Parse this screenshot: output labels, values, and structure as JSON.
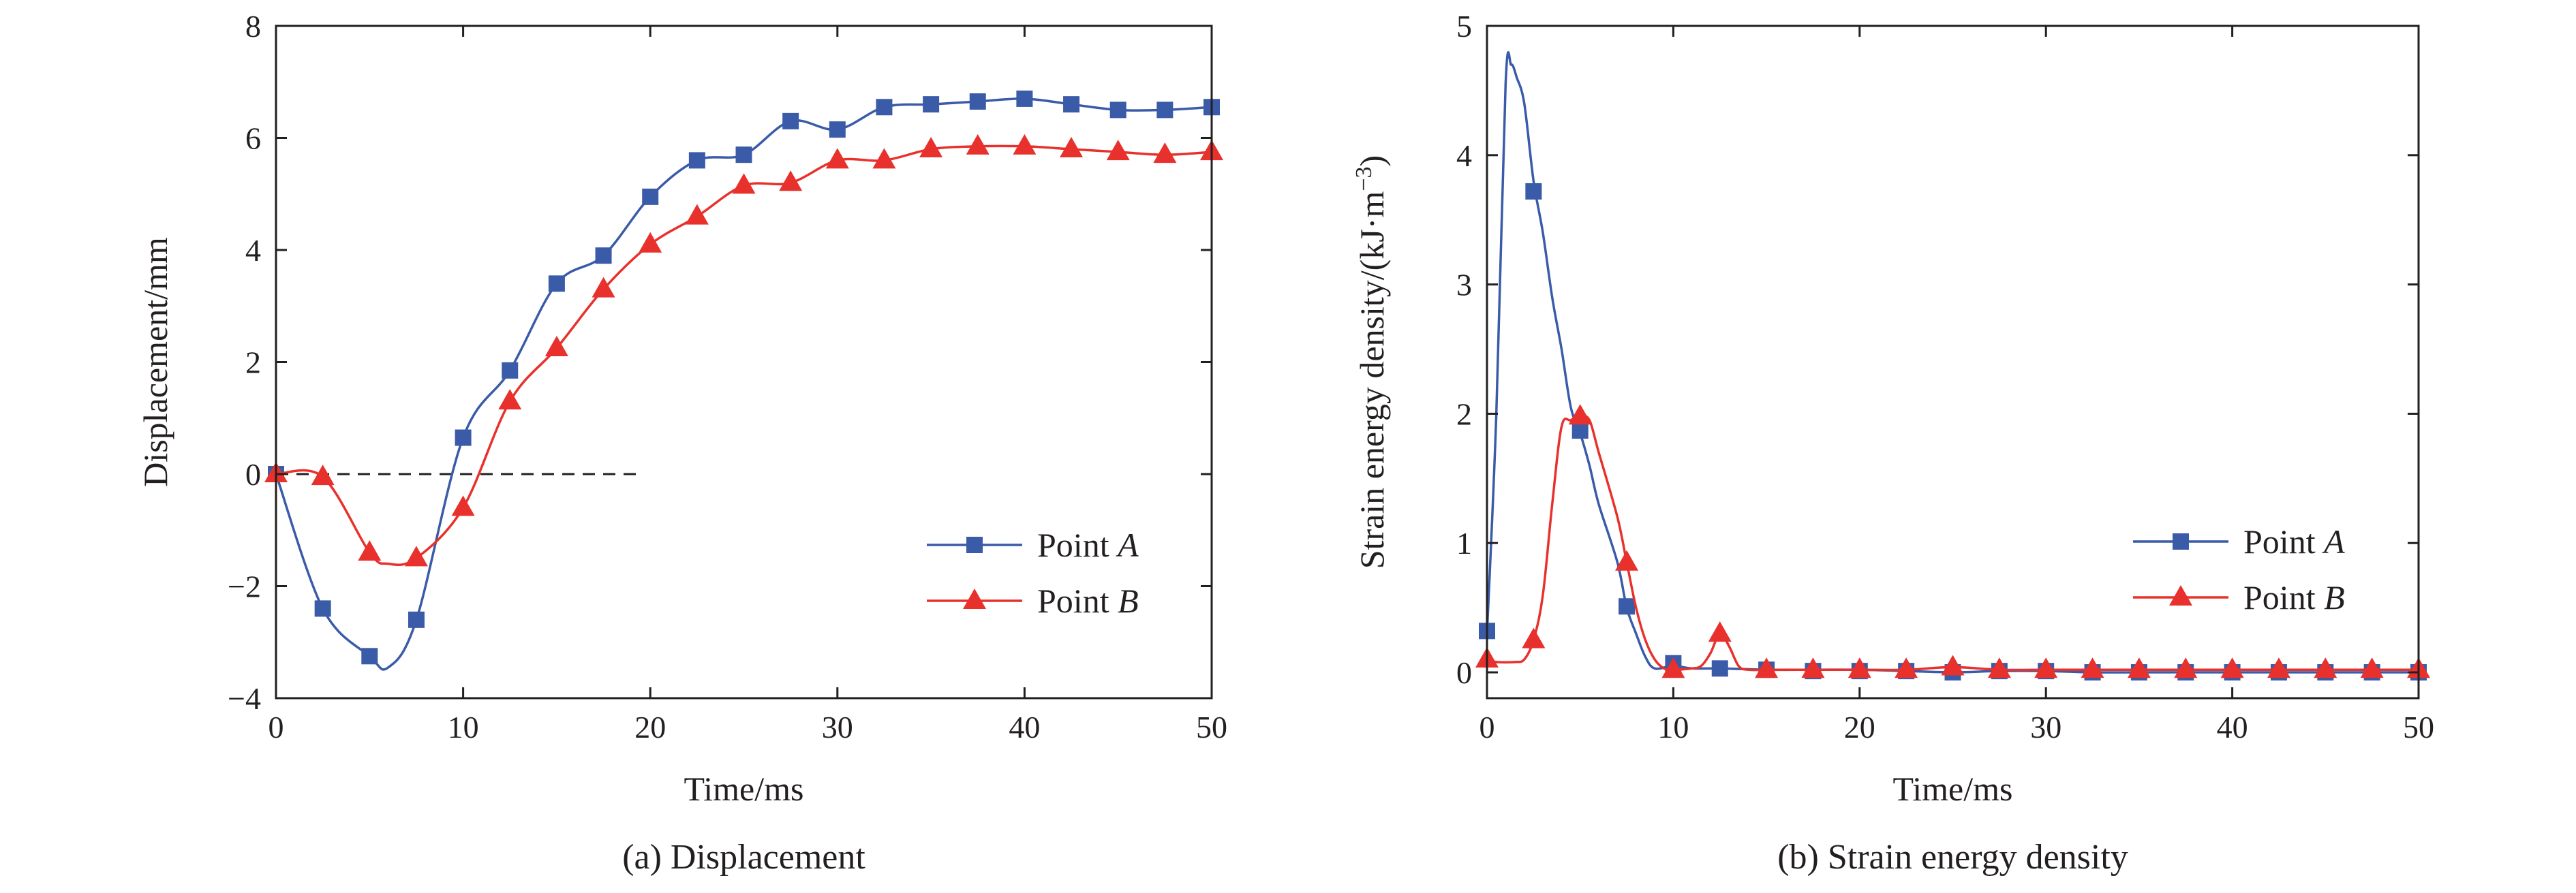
{
  "chart_data": [
    {
      "id": "a",
      "type": "line",
      "caption": "(a) Displacement",
      "xlabel": "Time/ms",
      "ylabel": "Displacement/mm",
      "xlim": [
        0,
        50
      ],
      "ylim": [
        -4,
        8
      ],
      "xticks": [
        0,
        10,
        20,
        30,
        40,
        50
      ],
      "xtick_labels": [
        "0",
        "10",
        "20",
        "30",
        "40",
        "50"
      ],
      "yticks": [
        -4,
        -2,
        0,
        2,
        4,
        6,
        8
      ],
      "ytick_labels": [
        "−4",
        "−2",
        "0",
        "2",
        "4",
        "6",
        "8"
      ],
      "grid": false,
      "legend_position": "right",
      "reference_line": {
        "y": 0,
        "x": [
          0,
          19.5
        ],
        "style": "dashed"
      },
      "series": [
        {
          "name": "Point A",
          "name_prefix": "Point ",
          "name_italic": "A",
          "color": "#3a5ba8",
          "marker": "square",
          "x": [
            0,
            2.5,
            5,
            6,
            7.5,
            10,
            12.5,
            15,
            17.5,
            20,
            22.5,
            25,
            27.5,
            30,
            32.5,
            35,
            37.5,
            40,
            42.5,
            45,
            47.5,
            50
          ],
          "y": [
            0,
            -2.4,
            -3.25,
            -3.45,
            -2.6,
            0.65,
            1.85,
            3.4,
            3.9,
            4.95,
            5.6,
            5.7,
            6.3,
            6.15,
            6.55,
            6.6,
            6.65,
            6.7,
            6.6,
            6.5,
            6.5,
            6.55
          ],
          "marker_x": [
            0,
            2.5,
            5,
            7.5,
            10,
            12.5,
            15,
            17.5,
            20,
            22.5,
            25,
            27.5,
            30,
            32.5,
            35,
            37.5,
            40,
            42.5,
            45,
            47.5,
            50
          ],
          "marker_y": [
            0,
            -2.4,
            -3.25,
            -2.6,
            0.65,
            1.85,
            3.4,
            3.9,
            4.95,
            5.6,
            5.7,
            6.3,
            6.15,
            6.55,
            6.6,
            6.65,
            6.7,
            6.6,
            6.5,
            6.5,
            6.55
          ]
        },
        {
          "name": "Point B",
          "name_prefix": "Point ",
          "name_italic": "B",
          "color": "#e8312c",
          "marker": "triangle",
          "x": [
            0,
            2.5,
            5,
            6,
            7.5,
            10,
            12.5,
            15,
            17.5,
            20,
            22.5,
            25,
            27.5,
            30,
            32.5,
            35,
            37.5,
            40,
            42.5,
            45,
            47.5,
            50
          ],
          "y": [
            0,
            -0.05,
            -1.4,
            -1.6,
            -1.5,
            -0.6,
            1.3,
            2.25,
            3.3,
            4.1,
            4.6,
            5.15,
            5.2,
            5.6,
            5.6,
            5.8,
            5.85,
            5.85,
            5.8,
            5.75,
            5.7,
            5.75
          ],
          "marker_x": [
            0,
            2.5,
            5,
            7.5,
            10,
            12.5,
            15,
            17.5,
            20,
            22.5,
            25,
            27.5,
            30,
            32.5,
            35,
            37.5,
            40,
            42.5,
            45,
            47.5,
            50
          ],
          "marker_y": [
            0,
            -0.05,
            -1.4,
            -1.5,
            -0.6,
            1.3,
            2.25,
            3.3,
            4.1,
            4.6,
            5.15,
            5.2,
            5.6,
            5.6,
            5.8,
            5.85,
            5.85,
            5.8,
            5.75,
            5.7,
            5.75
          ]
        }
      ]
    },
    {
      "id": "b",
      "type": "line",
      "caption": "(b) Strain energy density",
      "xlabel": "Time/ms",
      "ylabel_prefix": "Strain energy density/(kJ·m",
      "ylabel_sup": "−3",
      "ylabel_suffix": ")",
      "xlim": [
        0,
        50
      ],
      "ylim": [
        -0.2,
        5
      ],
      "xticks": [
        0,
        10,
        20,
        30,
        40,
        50
      ],
      "xtick_labels": [
        "0",
        "10",
        "20",
        "30",
        "40",
        "50"
      ],
      "yticks": [
        0,
        1,
        2,
        3,
        4,
        5
      ],
      "ytick_labels": [
        "0",
        "1",
        "2",
        "3",
        "4",
        "5"
      ],
      "grid": false,
      "legend_position": "right",
      "series": [
        {
          "name": "Point A",
          "name_prefix": "Point ",
          "name_italic": "A",
          "color": "#3a5ba8",
          "marker": "square",
          "x": [
            0,
            0.5,
            1,
            1.3,
            1.6,
            2,
            2.5,
            3,
            3.5,
            4,
            4.5,
            5,
            5.5,
            6,
            7,
            7.5,
            8,
            8.5,
            9,
            10,
            11,
            12.5,
            15,
            17.5,
            20,
            22.5,
            25,
            27.5,
            30,
            32.5,
            35,
            37.5,
            40,
            42.5,
            45,
            47.5,
            50
          ],
          "y": [
            0.3,
            2.0,
            4.55,
            4.7,
            4.6,
            4.4,
            3.8,
            3.4,
            2.9,
            2.5,
            2.05,
            1.85,
            1.6,
            1.3,
            0.85,
            0.5,
            0.3,
            0.12,
            0.03,
            0.05,
            0.03,
            0.03,
            0.02,
            0.02,
            0.02,
            0.01,
            0.0,
            0.01,
            0.01,
            0.0,
            0.0,
            0.0,
            0.0,
            0.0,
            0.0,
            0.0,
            0.0
          ],
          "marker_x": [
            0,
            2.5,
            5,
            7.5,
            10,
            12.5,
            15,
            17.5,
            20,
            22.5,
            25,
            27.5,
            30,
            32.5,
            35,
            37.5,
            40,
            42.5,
            45,
            47.5,
            50
          ],
          "marker_y": [
            0.32,
            3.72,
            1.87,
            0.51,
            0.07,
            0.03,
            0.02,
            0.01,
            0.01,
            0.01,
            0.0,
            0.01,
            0.01,
            0.0,
            0.0,
            0.0,
            0.0,
            0.0,
            0.0,
            0.0,
            0.0
          ]
        },
        {
          "name": "Point B",
          "name_prefix": "Point ",
          "name_italic": "B",
          "color": "#e8312c",
          "marker": "triangle",
          "x": [
            0,
            0.5,
            1.5,
            2,
            2.5,
            3,
            3.5,
            4,
            4.5,
            5,
            5.5,
            6,
            7,
            7.5,
            8,
            8.5,
            9,
            9.5,
            10,
            11,
            11.5,
            12,
            12.5,
            13,
            13.5,
            14,
            15,
            17.5,
            20,
            22.5,
            25,
            27.5,
            30,
            32.5,
            35,
            37.5,
            40,
            42.5,
            45,
            47.5,
            50
          ],
          "y": [
            0.1,
            0.08,
            0.08,
            0.1,
            0.25,
            0.6,
            1.3,
            1.9,
            1.95,
            1.98,
            1.95,
            1.7,
            1.2,
            0.85,
            0.5,
            0.25,
            0.1,
            0.03,
            0.02,
            0.03,
            0.05,
            0.15,
            0.3,
            0.2,
            0.05,
            0.02,
            0.02,
            0.02,
            0.02,
            0.02,
            0.04,
            0.02,
            0.02,
            0.02,
            0.02,
            0.02,
            0.02,
            0.02,
            0.02,
            0.02,
            0.02
          ],
          "marker_x": [
            0,
            2.5,
            5,
            7.5,
            10,
            12.5,
            15,
            17.5,
            20,
            22.5,
            25,
            27.5,
            30,
            32.5,
            35,
            37.5,
            40,
            42.5,
            45,
            47.5,
            50
          ],
          "marker_y": [
            0.1,
            0.25,
            1.98,
            0.85,
            0.02,
            0.3,
            0.02,
            0.02,
            0.02,
            0.02,
            0.04,
            0.02,
            0.02,
            0.02,
            0.02,
            0.02,
            0.02,
            0.02,
            0.02,
            0.02,
            0.02
          ]
        }
      ]
    }
  ]
}
